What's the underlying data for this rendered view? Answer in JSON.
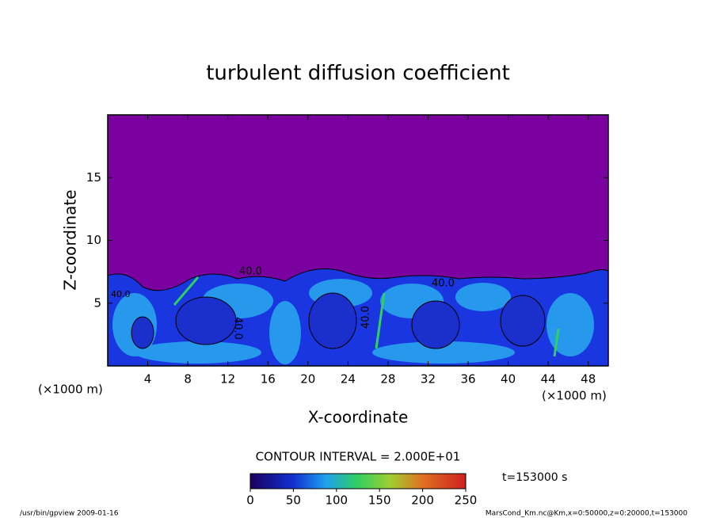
{
  "chart_data": {
    "type": "contour",
    "title": "turbulent diffusion coefficient",
    "xlabel": "X-coordinate",
    "ylabel": "Z-coordinate",
    "x_unit": "(×1000 m)",
    "xlim": [
      0,
      50
    ],
    "xticks": [
      4,
      8,
      12,
      16,
      20,
      24,
      28,
      32,
      36,
      40,
      44,
      48
    ],
    "ylim": [
      0,
      20
    ],
    "yticks": [
      5,
      10,
      15
    ],
    "contour_interval": "CONTOUR INTERVAL = 2.000E+01",
    "contour_labels": [
      "40.0",
      "40.0",
      "40.0",
      "40.0",
      "40.0"
    ],
    "time_label": "t=153000 s",
    "colorbar": {
      "lim": [
        0,
        250
      ],
      "ticks": [
        0,
        50,
        100,
        150,
        200,
        250
      ]
    },
    "footer_left": "/usr/bin/gpview   2009-01-16",
    "footer_right": "MarsCond_Km.nc@Km,x=0:50000,z=0:20000,t=153000"
  }
}
